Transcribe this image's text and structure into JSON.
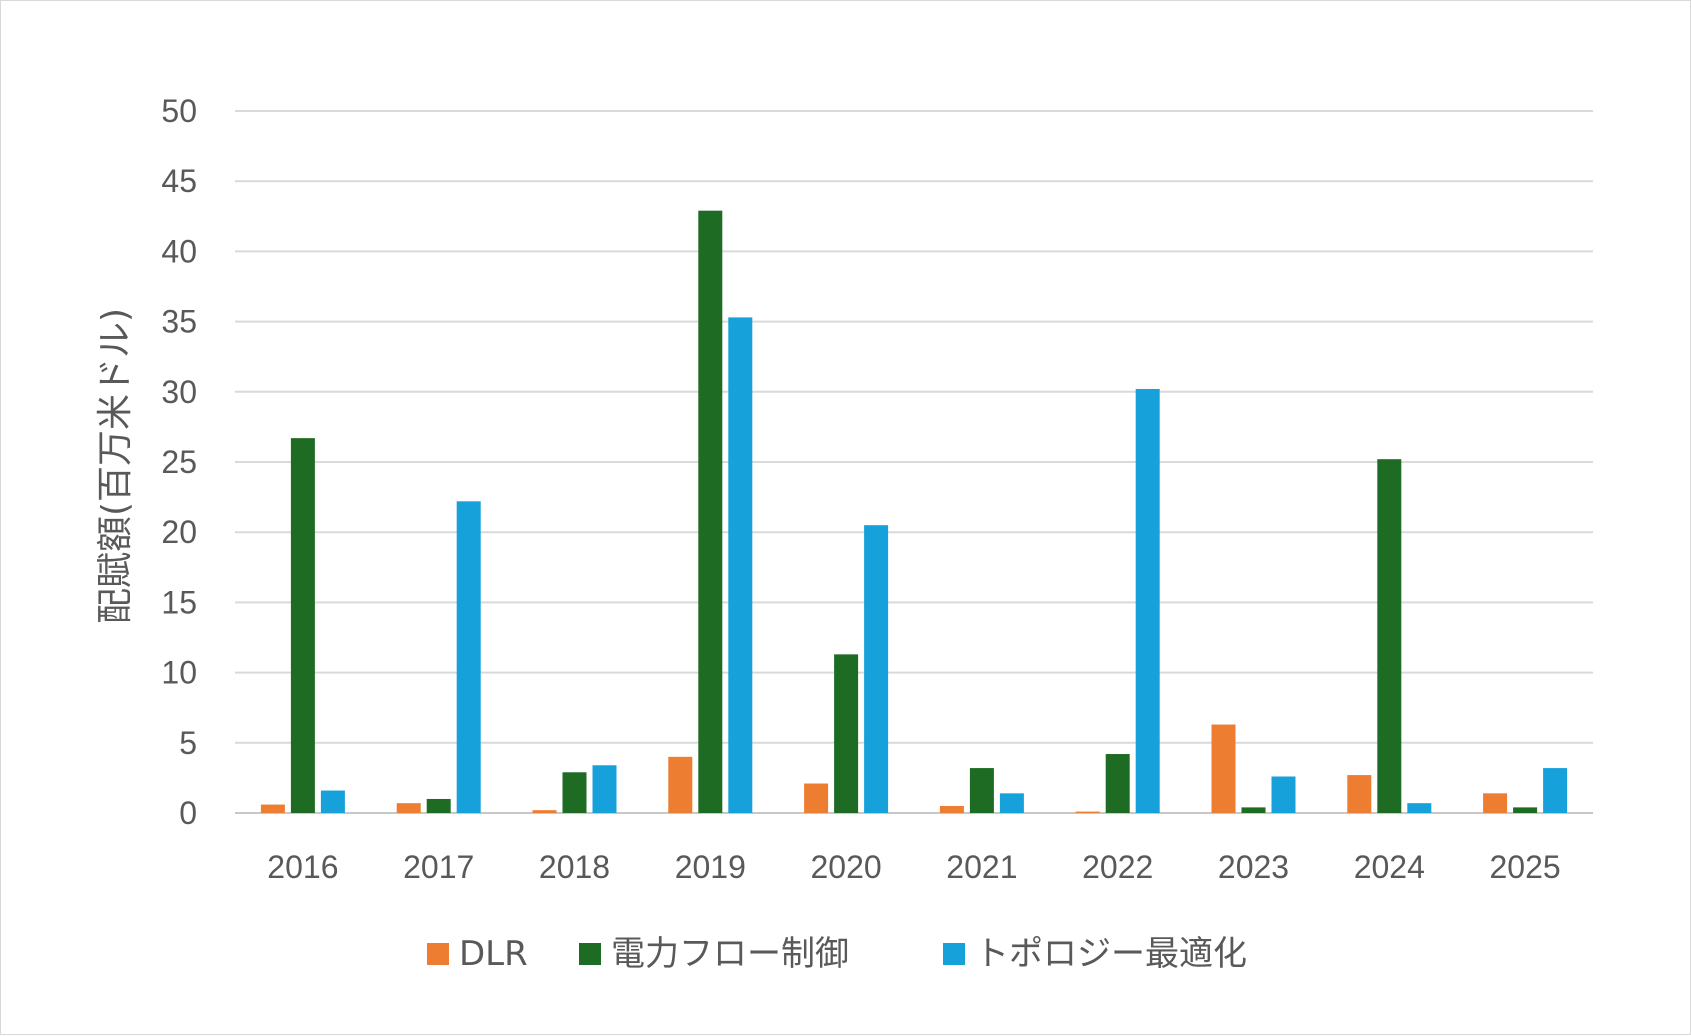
{
  "chart_data": {
    "type": "bar",
    "title": "",
    "xlabel": "",
    "ylabel": "配賦額(百万米ドル)",
    "ylim": [
      0,
      50
    ],
    "yticks": [
      0,
      5,
      10,
      15,
      20,
      25,
      30,
      35,
      40,
      45,
      50
    ],
    "grid": true,
    "legend_position": "bottom",
    "categories": [
      "2016",
      "2017",
      "2018",
      "2019",
      "2020",
      "2021",
      "2022",
      "2023",
      "2024",
      "2025"
    ],
    "series": [
      {
        "name": "DLR",
        "color": "#ED7D31",
        "values": [
          0.6,
          0.7,
          0.2,
          4.0,
          2.1,
          0.5,
          0.1,
          6.3,
          2.7,
          1.4
        ]
      },
      {
        "name": "電力フロー制御",
        "color": "#1E6B24",
        "values": [
          26.7,
          1.0,
          2.9,
          42.9,
          11.3,
          3.2,
          4.2,
          0.4,
          25.2,
          0.4
        ]
      },
      {
        "name": "トポロジー最適化",
        "color": "#17A1DA",
        "values": [
          1.6,
          22.2,
          3.4,
          35.3,
          20.5,
          1.4,
          30.2,
          2.6,
          0.7,
          3.2
        ]
      }
    ]
  }
}
